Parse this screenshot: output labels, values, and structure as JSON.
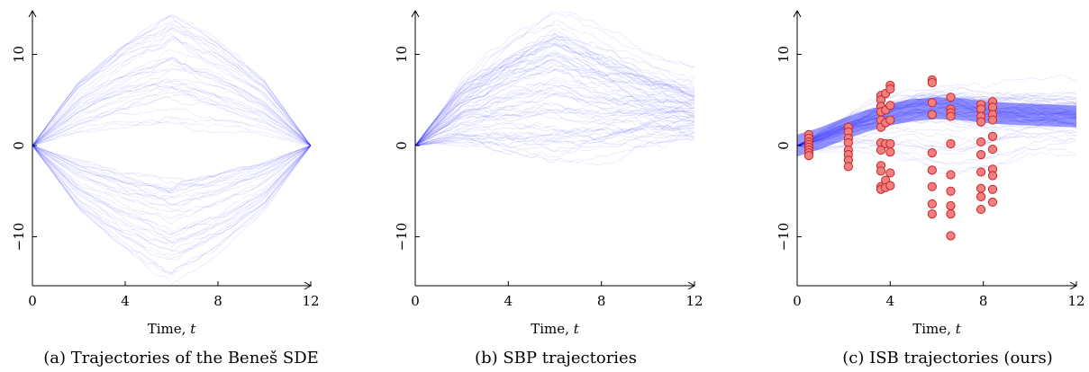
{
  "chart_data": [
    {
      "type": "line",
      "caption": "(a) Trajectories of the Beneš SDE",
      "xlabel": "Time, t",
      "ylabel": "",
      "xlim": [
        0,
        12
      ],
      "ylim": [
        -15,
        15
      ],
      "xticks": [
        "0",
        "4",
        "8",
        "12"
      ],
      "yticks": [
        "10",
        "0",
        "−10"
      ],
      "series_color": "#1a1aff",
      "description_of_series": "many sample paths starting at 0",
      "envelope": {
        "x": [
          0,
          2,
          4,
          6,
          8,
          10,
          12
        ],
        "mean_upper": [
          0,
          2.0,
          4.0,
          6.0,
          4.0,
          2.0,
          0
        ],
        "mean_lower": [
          0,
          -2.0,
          -4.0,
          -6.0,
          -4.0,
          -2.0,
          0
        ],
        "max_upper": [
          0,
          6.0,
          9.5,
          12.0,
          9.5,
          6.0,
          0
        ],
        "min_lower": [
          0,
          -6.0,
          -9.5,
          -12.0,
          -9.5,
          -6.0,
          0
        ]
      },
      "points": []
    },
    {
      "type": "line",
      "caption": "(b) SBP trajectories",
      "xlabel": "Time, t",
      "ylabel": "",
      "xlim": [
        0,
        12
      ],
      "ylim": [
        -15,
        15
      ],
      "xticks": [
        "0",
        "4",
        "8",
        "12"
      ],
      "yticks": [
        "10",
        "0",
        "−10"
      ],
      "series_color": "#1a1aff",
      "envelope": {
        "x": [
          0,
          2,
          4,
          6,
          8,
          10,
          12
        ],
        "mean": [
          0,
          3.5,
          6.0,
          7.0,
          6.0,
          4.5,
          3.0
        ],
        "upper": [
          0,
          7.0,
          11.0,
          14.0,
          11.0,
          8.0,
          6.0
        ],
        "lower": [
          0,
          -1.5,
          -3.5,
          -5.0,
          -3.5,
          -1.0,
          0.5
        ]
      },
      "points": []
    },
    {
      "type": "scatter",
      "caption": "(c) ISB trajectories (ours)",
      "xlabel": "Time, t",
      "ylabel": "",
      "xlim": [
        0,
        12
      ],
      "ylim": [
        -15,
        15
      ],
      "xticks": [
        "0",
        "4",
        "8",
        "12"
      ],
      "yticks": [
        "10",
        "0",
        "−10"
      ],
      "series_color": "#1a1aff",
      "point_color": "#f08080",
      "envelope": {
        "x": [
          0,
          1,
          2,
          3,
          4,
          5,
          6,
          7,
          8,
          9,
          10,
          11,
          12
        ],
        "mean": [
          0,
          0.8,
          1.8,
          2.7,
          3.4,
          3.9,
          4.1,
          4.0,
          3.7,
          3.5,
          3.4,
          3.3,
          3.2
        ],
        "upper": [
          0,
          2.0,
          3.5,
          4.8,
          5.8,
          6.5,
          6.8,
          6.8,
          6.5,
          6.3,
          6.2,
          6.1,
          6.0
        ],
        "lower": [
          0,
          -0.8,
          -0.5,
          -0.5,
          -1.0,
          -2.0,
          -3.0,
          -3.5,
          -2.5,
          -1.0,
          0.0,
          0.5,
          0.8
        ]
      },
      "points": [
        {
          "x": 0.5,
          "y": 1.2
        },
        {
          "x": 0.5,
          "y": 0.8
        },
        {
          "x": 0.5,
          "y": 0.4
        },
        {
          "x": 0.5,
          "y": 0.1
        },
        {
          "x": 0.5,
          "y": -0.2
        },
        {
          "x": 0.5,
          "y": -0.5
        },
        {
          "x": 0.5,
          "y": -0.8
        },
        {
          "x": 0.5,
          "y": -1.1
        },
        {
          "x": 2.2,
          "y": 2.0
        },
        {
          "x": 2.2,
          "y": 1.5
        },
        {
          "x": 2.2,
          "y": 0.8
        },
        {
          "x": 2.2,
          "y": 0.3
        },
        {
          "x": 2.2,
          "y": -0.5
        },
        {
          "x": 2.2,
          "y": -1.0
        },
        {
          "x": 2.2,
          "y": -1.6
        },
        {
          "x": 2.2,
          "y": -2.3
        },
        {
          "x": 3.6,
          "y": 5.5
        },
        {
          "x": 3.6,
          "y": 5.0
        },
        {
          "x": 3.6,
          "y": 4.3
        },
        {
          "x": 3.6,
          "y": 3.7
        },
        {
          "x": 3.6,
          "y": 2.8
        },
        {
          "x": 3.6,
          "y": 2.0
        },
        {
          "x": 3.6,
          "y": 0.3
        },
        {
          "x": 3.6,
          "y": -0.5
        },
        {
          "x": 3.6,
          "y": -2.2
        },
        {
          "x": 3.6,
          "y": -2.8
        },
        {
          "x": 3.6,
          "y": -4.5
        },
        {
          "x": 3.6,
          "y": -4.8
        },
        {
          "x": 3.8,
          "y": 5.7
        },
        {
          "x": 3.8,
          "y": 3.9
        },
        {
          "x": 3.8,
          "y": 2.5
        },
        {
          "x": 3.8,
          "y": 0.2
        },
        {
          "x": 3.8,
          "y": -3.8
        },
        {
          "x": 3.8,
          "y": -4.6
        },
        {
          "x": 4.0,
          "y": 6.6
        },
        {
          "x": 4.0,
          "y": 6.2
        },
        {
          "x": 4.0,
          "y": 4.4
        },
        {
          "x": 4.0,
          "y": 2.8
        },
        {
          "x": 4.0,
          "y": 0.2
        },
        {
          "x": 4.0,
          "y": -0.7
        },
        {
          "x": 4.0,
          "y": -3.0
        },
        {
          "x": 4.0,
          "y": -4.4
        },
        {
          "x": 5.8,
          "y": 7.2
        },
        {
          "x": 5.8,
          "y": 6.9
        },
        {
          "x": 5.8,
          "y": 4.7
        },
        {
          "x": 5.8,
          "y": 3.4
        },
        {
          "x": 5.8,
          "y": -0.8
        },
        {
          "x": 5.8,
          "y": -2.7
        },
        {
          "x": 5.8,
          "y": -4.5
        },
        {
          "x": 5.8,
          "y": -6.4
        },
        {
          "x": 5.8,
          "y": -7.5
        },
        {
          "x": 6.6,
          "y": 5.3
        },
        {
          "x": 6.6,
          "y": 4.0
        },
        {
          "x": 6.6,
          "y": 3.6
        },
        {
          "x": 6.6,
          "y": 3.2
        },
        {
          "x": 6.6,
          "y": 0.2
        },
        {
          "x": 6.6,
          "y": -3.2
        },
        {
          "x": 6.6,
          "y": -5.0
        },
        {
          "x": 6.6,
          "y": -6.6
        },
        {
          "x": 6.6,
          "y": -7.5
        },
        {
          "x": 6.6,
          "y": -9.9
        },
        {
          "x": 7.9,
          "y": 4.5
        },
        {
          "x": 7.9,
          "y": 4.0
        },
        {
          "x": 7.9,
          "y": 3.2
        },
        {
          "x": 7.9,
          "y": 2.6
        },
        {
          "x": 7.9,
          "y": 0.4
        },
        {
          "x": 7.9,
          "y": -1.0
        },
        {
          "x": 7.9,
          "y": -2.9
        },
        {
          "x": 7.9,
          "y": -4.7
        },
        {
          "x": 7.9,
          "y": -5.6
        },
        {
          "x": 7.9,
          "y": -7.0
        },
        {
          "x": 8.4,
          "y": 4.8
        },
        {
          "x": 8.4,
          "y": 4.2
        },
        {
          "x": 8.4,
          "y": 3.4
        },
        {
          "x": 8.4,
          "y": 2.8
        },
        {
          "x": 8.4,
          "y": 1.0
        },
        {
          "x": 8.4,
          "y": -0.4
        },
        {
          "x": 8.4,
          "y": -2.6
        },
        {
          "x": 8.4,
          "y": -3.3
        },
        {
          "x": 8.4,
          "y": -4.8
        },
        {
          "x": 8.4,
          "y": -6.2
        }
      ]
    }
  ]
}
